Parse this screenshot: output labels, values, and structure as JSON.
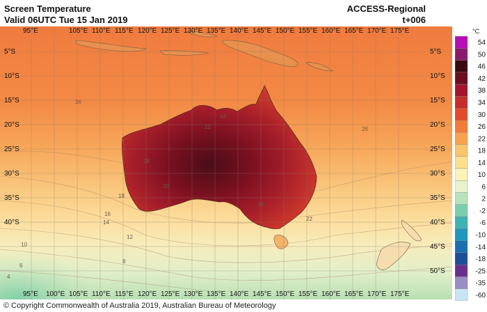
{
  "header": {
    "title": "Screen Temperature",
    "valid": "Valid 06UTC Tue 15 Jan 2019",
    "model": "ACCESS-Regional",
    "step": "t+006"
  },
  "axes": {
    "lon_labels": [
      "95°E",
      "100°E",
      "105°E",
      "110°E",
      "115°E",
      "120°E",
      "125°E",
      "130°E",
      "135°E",
      "140°E",
      "145°E",
      "150°E",
      "155°E",
      "160°E",
      "165°E",
      "170°E",
      "175°E"
    ],
    "top_lon_labels": [
      "95°E",
      "105°E",
      "110°E",
      "115°E",
      "120°E",
      "125°E",
      "130°E",
      "135°E",
      "140°E",
      "145°E",
      "150°E",
      "155°E",
      "160°E",
      "165°E",
      "170°E",
      "175°E"
    ],
    "lat_labels_left": [
      "5°S",
      "10°S",
      "15°S",
      "20°S",
      "25°S",
      "30°S",
      "35°S",
      "40°S"
    ],
    "lat_labels_right": [
      "5°S",
      "10°S",
      "15°S",
      "20°S",
      "25°S",
      "30°S",
      "35°S",
      "40°S",
      "45°S",
      "50°S"
    ]
  },
  "contour_labels": [
    "36",
    "26",
    "28",
    "22",
    "18",
    "20",
    "16",
    "14",
    "12",
    "10",
    "8",
    "6",
    "4",
    "44",
    "22",
    "42"
  ],
  "legend": {
    "unit": "°C",
    "levels": [
      "54",
      "50",
      "46",
      "42",
      "38",
      "34",
      "30",
      "26",
      "22",
      "18",
      "14",
      "10",
      "6",
      "2",
      "-2",
      "-6",
      "-10",
      "-14",
      "-18",
      "-25",
      "-35",
      "-60"
    ],
    "colors": [
      "#b40fb4",
      "#8a1a6e",
      "#3a0a12",
      "#6b0f1f",
      "#a3142a",
      "#c62c2c",
      "#e24a2c",
      "#f27c3a",
      "#f7a24e",
      "#f9c46c",
      "#fbe08e",
      "#fdf2b8",
      "#e8f2cc",
      "#b8e2b8",
      "#7ccdb0",
      "#3fb3b2",
      "#1f97bd",
      "#1a6fb1",
      "#1d4f98",
      "#6a2f8e",
      "#9a8cc4",
      "#c9e4f5"
    ]
  },
  "footer": "© Copyright Commonwealth of Australia 2019, Australian Bureau of Meteorology"
}
